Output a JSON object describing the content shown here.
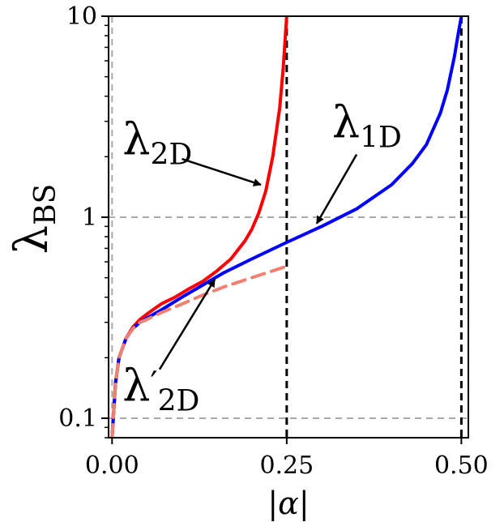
{
  "chart_data": {
    "type": "line",
    "xlabel": "|α|",
    "ylabel": "λ",
    "ylabel_sub": "BS",
    "xlim": [
      -0.005,
      0.51
    ],
    "ylim": [
      0.08,
      10
    ],
    "yscale": "log",
    "xticks": [
      0.0,
      0.25,
      0.5
    ],
    "xtick_labels": [
      "0.00",
      "0.25",
      "0.50"
    ],
    "yticks": [
      0.1,
      1,
      10
    ],
    "ytick_labels": [
      "0.1",
      "1",
      "10"
    ],
    "reference_lines": {
      "vertical_dashed": [
        0.25,
        0.5
      ],
      "horizontal_dashed": [
        0.1,
        1
      ],
      "vertical_gray": [
        0.0
      ]
    },
    "series": [
      {
        "key": "2D",
        "color": "#ff0000",
        "style": "solid",
        "x": [
          0.0,
          0.005,
          0.01,
          0.02,
          0.03,
          0.04,
          0.05,
          0.07,
          0.09,
          0.11,
          0.13,
          0.15,
          0.17,
          0.19,
          0.2,
          0.21,
          0.22,
          0.23,
          0.24,
          0.245,
          0.25
        ],
        "y": [
          0.08,
          0.15,
          0.2,
          0.25,
          0.285,
          0.31,
          0.33,
          0.37,
          0.4,
          0.44,
          0.48,
          0.54,
          0.62,
          0.76,
          0.87,
          1.05,
          1.35,
          2.0,
          3.5,
          5.5,
          10
        ]
      },
      {
        "key": "1D",
        "color": "#0000ff",
        "style": "solid",
        "x": [
          0.0,
          0.005,
          0.01,
          0.02,
          0.03,
          0.04,
          0.05,
          0.07,
          0.1,
          0.13,
          0.16,
          0.2,
          0.25,
          0.3,
          0.35,
          0.4,
          0.43,
          0.45,
          0.47,
          0.48,
          0.49,
          0.495,
          0.5
        ],
        "y": [
          0.08,
          0.15,
          0.2,
          0.25,
          0.28,
          0.3,
          0.315,
          0.345,
          0.4,
          0.46,
          0.53,
          0.62,
          0.75,
          0.9,
          1.1,
          1.45,
          1.85,
          2.3,
          3.3,
          4.3,
          6.3,
          8.0,
          10
        ]
      },
      {
        "key": "2D-prime",
        "color": "#f08070",
        "style": "dashed",
        "x": [
          0.0,
          0.005,
          0.01,
          0.02,
          0.03,
          0.04,
          0.05,
          0.07,
          0.1,
          0.13,
          0.16,
          0.2,
          0.25
        ],
        "y": [
          0.08,
          0.15,
          0.2,
          0.25,
          0.28,
          0.3,
          0.31,
          0.335,
          0.37,
          0.41,
          0.45,
          0.5,
          0.57
        ]
      }
    ],
    "annotations": [
      {
        "key": "ann-2d",
        "label": "λ",
        "sub": "2D",
        "prime": "",
        "text_x": 0.015,
        "text_y": 2.05,
        "arrow_from": [
          0.1,
          1.95
        ],
        "arrow_to": [
          0.213,
          1.45
        ]
      },
      {
        "key": "ann-1d",
        "label": "λ",
        "sub": "1D",
        "prime": "",
        "text_x": 0.315,
        "text_y": 2.5,
        "arrow_from": [
          0.35,
          2.05
        ],
        "arrow_to": [
          0.293,
          0.93
        ]
      },
      {
        "key": "ann-2dp",
        "label": "λ",
        "sub": "2D",
        "prime": "′",
        "text_x": 0.015,
        "text_y": 0.122,
        "arrow_from": [
          0.068,
          0.175
        ],
        "arrow_to": [
          0.147,
          0.49
        ]
      }
    ]
  }
}
